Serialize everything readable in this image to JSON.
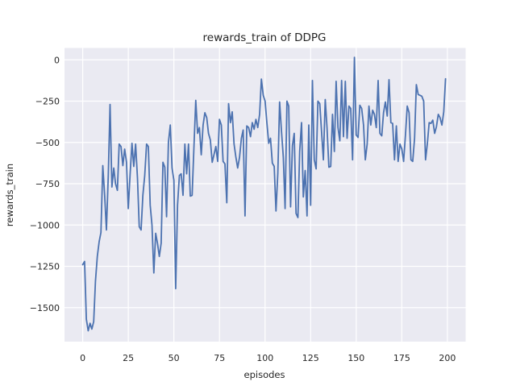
{
  "figure": {
    "background": "#ffffff",
    "plot_background": "#eaeaf2",
    "grid_color": "#ffffff",
    "text_color": "#262626",
    "line_color": "#4c72b0"
  },
  "chart_data": {
    "type": "line",
    "title": "rewards_train of DDPG",
    "xlabel": "episodes",
    "ylabel": "rewards_train",
    "grid": true,
    "legend": false,
    "xlim": [
      -10,
      210
    ],
    "ylim": [
      -1706,
      72
    ],
    "x_ticks": [
      0,
      25,
      50,
      75,
      100,
      125,
      150,
      175,
      200
    ],
    "x_tick_labels": [
      "0",
      "25",
      "50",
      "75",
      "100",
      "125",
      "150",
      "175",
      "200"
    ],
    "y_ticks": [
      0,
      -250,
      -500,
      -750,
      -1000,
      -1250,
      -1500
    ],
    "y_tick_labels": [
      "0",
      "−250",
      "−500",
      "−750",
      "−1000",
      "−1250",
      "−1500"
    ],
    "series": [
      {
        "name": "rewards_train",
        "color": "#4c72b0",
        "x_start": 0,
        "x_step": 1,
        "values": [
          -1240,
          -1220,
          -1570,
          -1640,
          -1595,
          -1630,
          -1585,
          -1340,
          -1190,
          -1100,
          -1045,
          -640,
          -820,
          -1030,
          -700,
          -270,
          -770,
          -655,
          -750,
          -790,
          -510,
          -525,
          -640,
          -540,
          -620,
          -900,
          -690,
          -505,
          -645,
          -510,
          -715,
          -1010,
          -1030,
          -820,
          -700,
          -510,
          -525,
          -880,
          -1000,
          -1290,
          -1050,
          -1110,
          -1190,
          -1110,
          -620,
          -650,
          -950,
          -500,
          -395,
          -655,
          -730,
          -1385,
          -880,
          -700,
          -690,
          -820,
          -510,
          -690,
          -510,
          -825,
          -820,
          -520,
          -245,
          -445,
          -410,
          -575,
          -395,
          -320,
          -350,
          -445,
          -485,
          -620,
          -575,
          -525,
          -615,
          -360,
          -395,
          -615,
          -630,
          -865,
          -265,
          -380,
          -315,
          -510,
          -590,
          -655,
          -590,
          -475,
          -425,
          -945,
          -400,
          -410,
          -465,
          -380,
          -420,
          -360,
          -410,
          -330,
          -117,
          -215,
          -250,
          -380,
          -505,
          -475,
          -625,
          -645,
          -915,
          -685,
          -255,
          -430,
          -590,
          -900,
          -250,
          -280,
          -890,
          -520,
          -445,
          -930,
          -955,
          -555,
          -380,
          -830,
          -670,
          -945,
          -395,
          -880,
          -125,
          -605,
          -660,
          -250,
          -265,
          -440,
          -605,
          -240,
          -410,
          -650,
          -645,
          -330,
          -555,
          -130,
          -410,
          -490,
          -125,
          -465,
          -130,
          -475,
          -280,
          -295,
          -605,
          15,
          -455,
          -470,
          -275,
          -295,
          -395,
          -605,
          -510,
          -280,
          -395,
          -305,
          -330,
          -410,
          -125,
          -445,
          -460,
          -320,
          -255,
          -340,
          -120,
          -380,
          -385,
          -605,
          -400,
          -615,
          -510,
          -540,
          -615,
          -455,
          -280,
          -320,
          -605,
          -615,
          -475,
          -150,
          -210,
          -215,
          -220,
          -250,
          -605,
          -510,
          -380,
          -385,
          -365,
          -445,
          -405,
          -330,
          -350,
          -395,
          -315,
          -115
        ]
      }
    ]
  }
}
